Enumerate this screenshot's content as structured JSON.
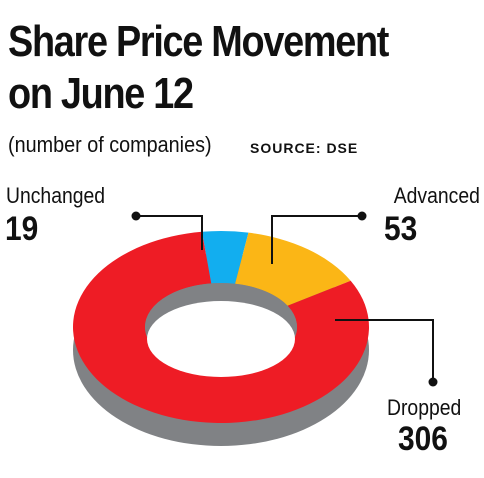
{
  "title_line1": "Share Price Movement",
  "title_line2": "on June 12",
  "subtitle": "(number of companies)",
  "source": "SOURCE: DSE",
  "colors": {
    "advanced": "#fbb616",
    "dropped": "#ee1c25",
    "unchanged": "#12aeef",
    "shadow": "#808285"
  },
  "chart_data": {
    "type": "pie",
    "style": "3d-donut",
    "slices": [
      {
        "label": "Advanced",
        "value": 53
      },
      {
        "label": "Dropped",
        "value": 306
      },
      {
        "label": "Unchanged",
        "value": 19
      }
    ]
  }
}
